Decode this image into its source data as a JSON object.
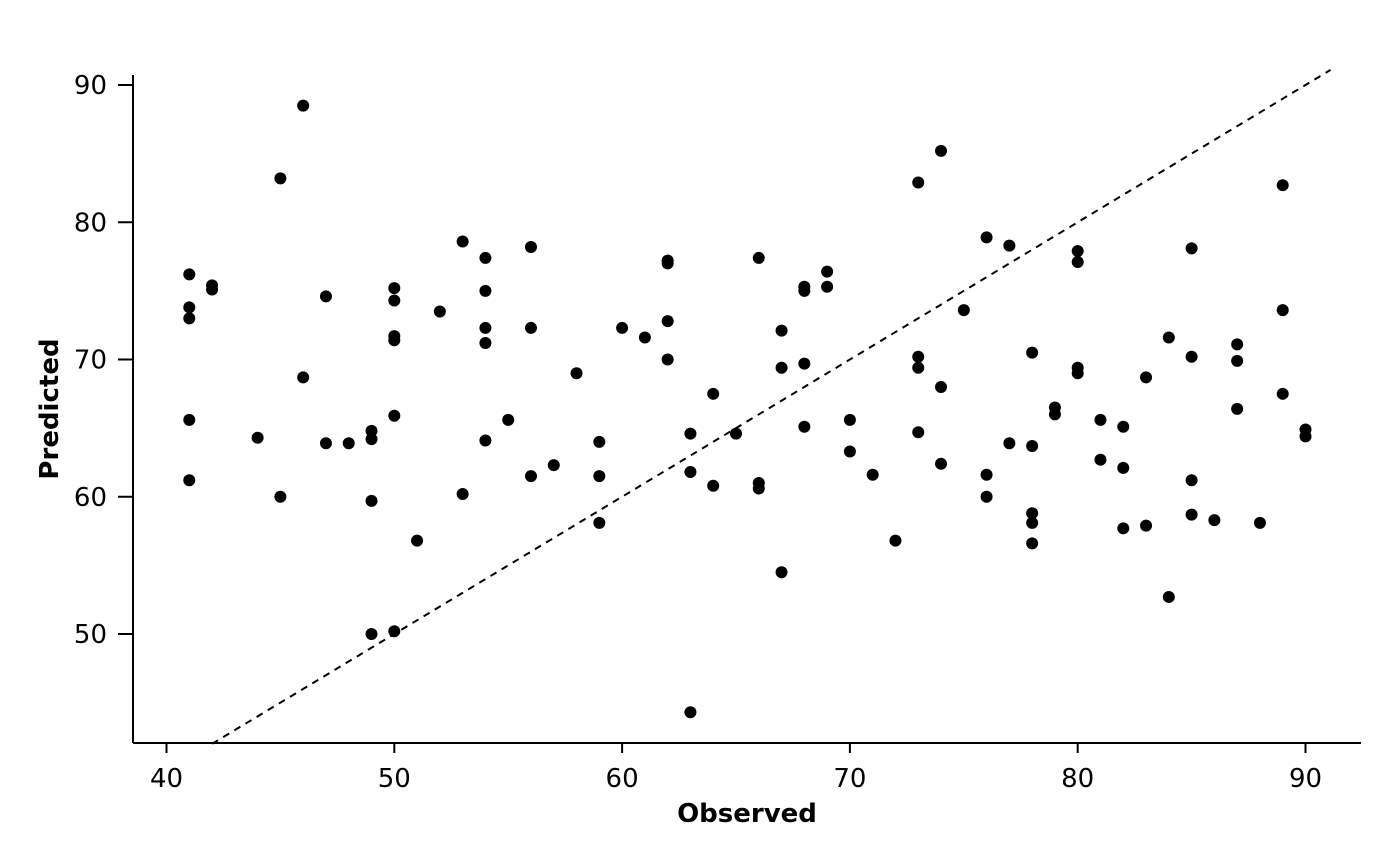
{
  "chart_data": {
    "type": "scatter",
    "title": "",
    "xlabel": "Observed",
    "ylabel": "Predicted",
    "xlim": [
      38.5,
      92.5
    ],
    "ylim": [
      42,
      91
    ],
    "x_ticks": [
      40,
      50,
      60,
      70,
      80,
      90
    ],
    "y_ticks": [
      50,
      60,
      70,
      80,
      90
    ],
    "grid": false,
    "legend": "none",
    "reference_line": {
      "style": "dashed",
      "slope": 1,
      "intercept": 0,
      "label": ""
    },
    "point_color": "#000000",
    "points": [
      [
        41,
        76.2
      ],
      [
        41,
        73.8
      ],
      [
        41,
        73.0
      ],
      [
        41,
        65.6
      ],
      [
        41,
        61.2
      ],
      [
        42,
        75.4
      ],
      [
        42,
        75.1
      ],
      [
        44,
        64.3
      ],
      [
        45,
        83.2
      ],
      [
        45,
        60.0
      ],
      [
        46,
        88.5
      ],
      [
        46,
        68.7
      ],
      [
        47,
        74.6
      ],
      [
        47,
        63.9
      ],
      [
        48,
        63.9
      ],
      [
        49,
        64.8
      ],
      [
        49,
        64.2
      ],
      [
        49,
        59.7
      ],
      [
        49,
        50.0
      ],
      [
        50,
        75.2
      ],
      [
        50,
        74.3
      ],
      [
        50,
        71.7
      ],
      [
        50,
        71.4
      ],
      [
        50,
        65.9
      ],
      [
        50,
        50.2
      ],
      [
        51,
        56.8
      ],
      [
        52,
        73.5
      ],
      [
        53,
        78.6
      ],
      [
        53,
        60.2
      ],
      [
        54,
        77.4
      ],
      [
        54,
        75.0
      ],
      [
        54,
        72.3
      ],
      [
        54,
        71.2
      ],
      [
        54,
        64.1
      ],
      [
        55,
        65.6
      ],
      [
        56,
        78.2
      ],
      [
        56,
        72.3
      ],
      [
        56,
        61.5
      ],
      [
        57,
        62.3
      ],
      [
        58,
        69.0
      ],
      [
        59,
        64.0
      ],
      [
        59,
        61.5
      ],
      [
        59,
        58.1
      ],
      [
        60,
        72.3
      ],
      [
        61,
        71.6
      ],
      [
        62,
        77.2
      ],
      [
        62,
        77.0
      ],
      [
        62,
        72.8
      ],
      [
        62,
        70.0
      ],
      [
        63,
        64.6
      ],
      [
        63,
        61.8
      ],
      [
        63,
        44.3
      ],
      [
        64,
        67.5
      ],
      [
        64,
        60.8
      ],
      [
        65,
        64.6
      ],
      [
        66,
        77.4
      ],
      [
        66,
        61.0
      ],
      [
        66,
        60.6
      ],
      [
        67,
        72.1
      ],
      [
        67,
        69.4
      ],
      [
        67,
        54.5
      ],
      [
        68,
        75.3
      ],
      [
        68,
        75.0
      ],
      [
        68,
        69.7
      ],
      [
        68,
        65.1
      ],
      [
        69,
        76.4
      ],
      [
        69,
        75.3
      ],
      [
        70,
        65.6
      ],
      [
        70,
        63.3
      ],
      [
        71,
        61.6
      ],
      [
        72,
        56.8
      ],
      [
        73,
        82.9
      ],
      [
        73,
        70.2
      ],
      [
        73,
        69.4
      ],
      [
        73,
        64.7
      ],
      [
        74,
        85.2
      ],
      [
        74,
        68.0
      ],
      [
        74,
        62.4
      ],
      [
        75,
        73.6
      ],
      [
        76,
        78.9
      ],
      [
        76,
        61.6
      ],
      [
        76,
        60.0
      ],
      [
        77,
        78.3
      ],
      [
        77,
        63.9
      ],
      [
        78,
        70.5
      ],
      [
        78,
        63.7
      ],
      [
        78,
        58.8
      ],
      [
        78,
        58.1
      ],
      [
        78,
        56.6
      ],
      [
        79,
        66.5
      ],
      [
        79,
        66.0
      ],
      [
        80,
        77.9
      ],
      [
        80,
        77.1
      ],
      [
        80,
        69.4
      ],
      [
        80,
        69.0
      ],
      [
        81,
        65.6
      ],
      [
        81,
        62.7
      ],
      [
        82,
        65.1
      ],
      [
        82,
        62.1
      ],
      [
        82,
        57.7
      ],
      [
        83,
        68.7
      ],
      [
        83,
        57.9
      ],
      [
        84,
        71.6
      ],
      [
        84,
        52.7
      ],
      [
        85,
        78.1
      ],
      [
        85,
        70.2
      ],
      [
        85,
        61.2
      ],
      [
        85,
        58.7
      ],
      [
        86,
        58.3
      ],
      [
        87,
        71.1
      ],
      [
        87,
        69.9
      ],
      [
        87,
        66.4
      ],
      [
        88,
        58.1
      ],
      [
        89,
        82.7
      ],
      [
        89,
        73.6
      ],
      [
        89,
        67.5
      ],
      [
        90,
        64.9
      ],
      [
        90,
        64.4
      ]
    ]
  }
}
